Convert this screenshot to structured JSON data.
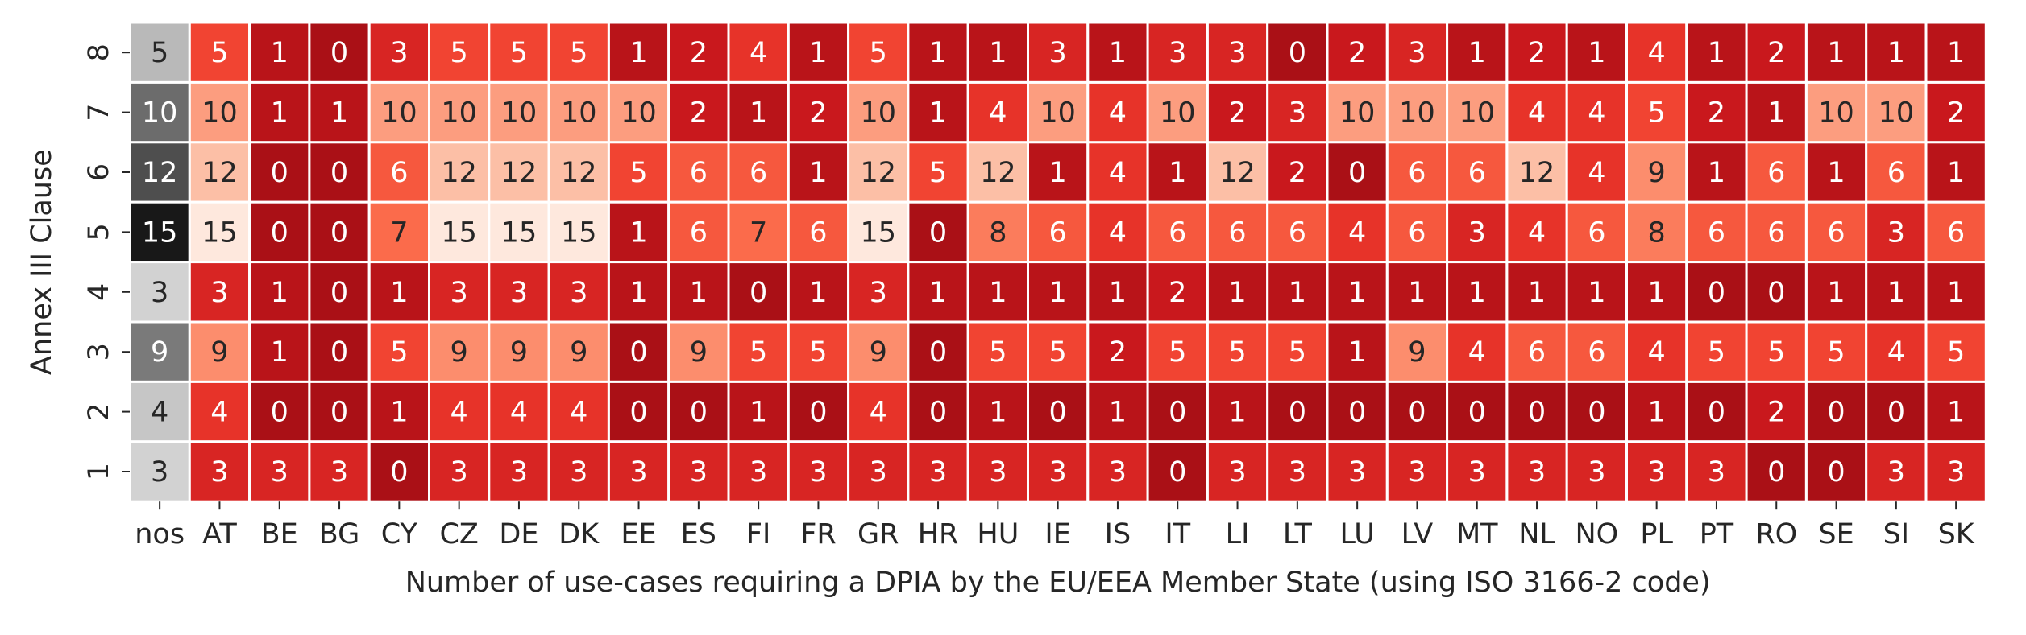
{
  "chart_data": {
    "type": "heatmap",
    "title": "",
    "xlabel": "Number of use-cases requiring a DPIA by the EU/EEA Member State (using ISO 3166-2 code)",
    "ylabel": "Annex III Clause",
    "x": [
      "nos",
      "AT",
      "BE",
      "BG",
      "CY",
      "CZ",
      "DE",
      "DK",
      "EE",
      "ES",
      "FI",
      "FR",
      "GR",
      "HR",
      "HU",
      "IE",
      "IS",
      "IT",
      "LI",
      "LT",
      "LU",
      "LV",
      "MT",
      "NL",
      "NO",
      "PL",
      "PT",
      "RO",
      "SE",
      "SI",
      "SK"
    ],
    "y": [
      "8",
      "7",
      "6",
      "5",
      "4",
      "3",
      "2",
      "1"
    ],
    "values": [
      [
        5,
        5,
        1,
        0,
        3,
        5,
        5,
        5,
        1,
        2,
        4,
        1,
        5,
        1,
        1,
        3,
        1,
        3,
        3,
        0,
        2,
        3,
        1,
        2,
        1,
        4,
        1,
        2,
        1,
        1,
        1
      ],
      [
        10,
        10,
        1,
        1,
        10,
        10,
        10,
        10,
        10,
        2,
        1,
        2,
        10,
        1,
        4,
        10,
        4,
        10,
        2,
        3,
        10,
        10,
        10,
        4,
        4,
        5,
        2,
        1,
        10,
        10,
        2
      ],
      [
        12,
        12,
        0,
        0,
        6,
        12,
        12,
        12,
        5,
        6,
        6,
        1,
        12,
        5,
        12,
        1,
        4,
        1,
        12,
        2,
        0,
        6,
        6,
        12,
        4,
        9,
        1,
        6,
        1,
        6,
        1
      ],
      [
        15,
        15,
        0,
        0,
        7,
        15,
        15,
        15,
        1,
        6,
        7,
        6,
        15,
        0,
        8,
        6,
        4,
        6,
        6,
        6,
        4,
        6,
        3,
        4,
        6,
        8,
        6,
        6,
        6,
        3,
        6
      ],
      [
        3,
        3,
        1,
        0,
        1,
        3,
        3,
        3,
        1,
        1,
        0,
        1,
        3,
        1,
        1,
        1,
        1,
        2,
        1,
        1,
        1,
        1,
        1,
        1,
        1,
        1,
        0,
        0,
        1,
        1,
        1
      ],
      [
        9,
        9,
        1,
        0,
        5,
        9,
        9,
        9,
        0,
        9,
        5,
        5,
        9,
        0,
        5,
        5,
        2,
        5,
        5,
        5,
        1,
        9,
        4,
        6,
        6,
        4,
        5,
        5,
        5,
        4,
        5
      ],
      [
        4,
        4,
        0,
        0,
        1,
        4,
        4,
        4,
        0,
        0,
        1,
        0,
        4,
        0,
        1,
        0,
        1,
        0,
        1,
        0,
        0,
        0,
        0,
        0,
        0,
        1,
        0,
        2,
        0,
        0,
        1
      ],
      [
        3,
        3,
        3,
        3,
        0,
        3,
        3,
        3,
        3,
        3,
        3,
        3,
        3,
        3,
        3,
        3,
        3,
        0,
        3,
        3,
        3,
        3,
        3,
        3,
        3,
        3,
        3,
        0,
        0,
        3,
        3
      ]
    ],
    "colormap": {
      "nos_column": "greys",
      "other_columns": "reds_reversed"
    },
    "colorbar": false,
    "annotated": true,
    "grid": false
  }
}
